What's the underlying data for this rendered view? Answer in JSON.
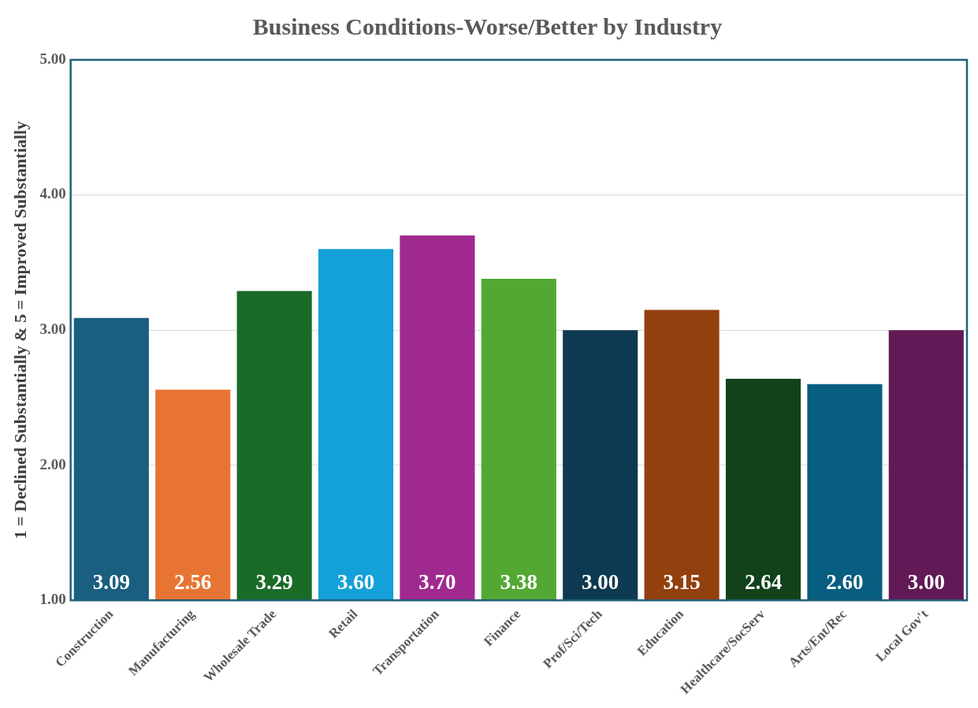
{
  "chart_data": {
    "type": "bar",
    "title": "Business Conditions-Worse/Better by Industry",
    "ylabel": "1 = Declined Substantially & 5 = Improved Substantially",
    "categories": [
      "Construction",
      "Manufacturing",
      "Wholesale Trade",
      "Retail",
      "Transportation",
      "Finance",
      "Prof/Sci/Tech",
      "Education",
      "Healthcare/SocServ",
      "Arts/Ent/Rec",
      "Local Gov't"
    ],
    "values": [
      3.09,
      2.56,
      3.29,
      3.6,
      3.7,
      3.38,
      3.0,
      3.15,
      2.64,
      2.6,
      3.0
    ],
    "value_labels": [
      "3.09",
      "2.56",
      "3.29",
      "3.60",
      "3.70",
      "3.38",
      "3.00",
      "3.15",
      "2.64",
      "2.60",
      "3.00"
    ],
    "colors": [
      "#1a5e80",
      "#e87433",
      "#1a6b27",
      "#14a0d8",
      "#a0298f",
      "#52a832",
      "#0d3a50",
      "#93400f",
      "#12421a",
      "#075e80",
      "#621a56"
    ],
    "ylim": [
      1,
      5
    ],
    "yticks": [
      {
        "value": 1,
        "label": "1.00"
      },
      {
        "value": 2,
        "label": "2.00"
      },
      {
        "value": 3,
        "label": "3.00"
      },
      {
        "value": 4,
        "label": "4.00"
      },
      {
        "value": 5,
        "label": "5.00"
      }
    ],
    "grid": "y",
    "legend": false
  }
}
